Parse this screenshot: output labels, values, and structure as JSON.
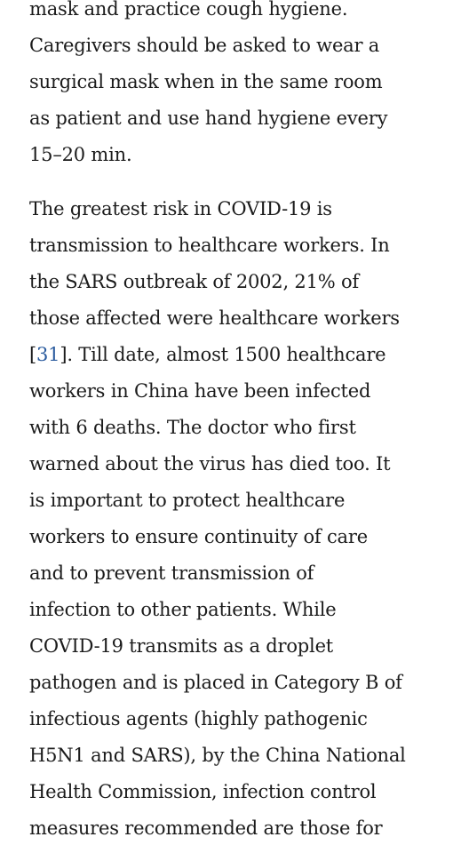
{
  "article": {
    "paragraphs": [
      {
        "lines": [
          "mask and practice cough hygiene.",
          "Caregivers should be asked to wear a",
          "surgical mask when in the same room",
          "as patient and use hand hygiene every",
          "15–20 min."
        ]
      },
      {
        "lines": [
          "The greatest risk in COVID-19 is",
          "transmission to healthcare workers. In",
          "the SARS outbreak of 2002, 21% of",
          "those affected were healthcare workers"
        ],
        "ref_line": {
          "open": "[",
          "ref": "31",
          "rest": "]. Till date, almost 1500 healthcare"
        },
        "lines_after": [
          "workers in China have been infected",
          "with 6 deaths. The doctor who first",
          "warned about the virus has died too. It",
          "is important to protect healthcare",
          "workers to ensure continuity of care",
          "and to prevent transmission of",
          "infection to other patients. While",
          "COVID-19 transmits as a droplet",
          "pathogen and is placed in Category B of",
          "infectious agents (highly pathogenic",
          "H5N1 and SARS), by the China National",
          "Health Commission, infection control",
          "measures recommended are those for"
        ]
      }
    ]
  }
}
